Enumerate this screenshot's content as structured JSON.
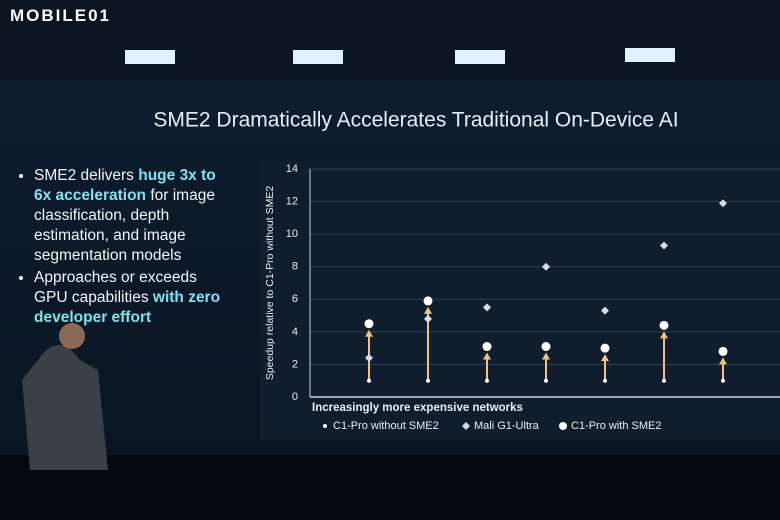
{
  "watermark": "MOBILE01",
  "bullets": [
    [
      {
        "text": "SME2 delivers ",
        "highlight": false
      },
      {
        "text": "huge 3x to 6x acceleration",
        "highlight": true
      },
      {
        "text": " for image classification, depth estimation, and image segmentation models",
        "highlight": false
      }
    ],
    [
      {
        "text": "Approaches or exceeds GPU capabilities ",
        "highlight": false
      },
      {
        "text": "with zero developer effort",
        "highlight": true
      }
    ]
  ],
  "chart_data": {
    "type": "arrow-scatter",
    "title": "SME2 Dramatically Accelerates Traditional On-Device AI",
    "y_label": "Speedup relative to C1-Pro without SME2",
    "x_label": "Increasingly more expensive networks",
    "categories": [
      null,
      null,
      null,
      null,
      null,
      null,
      null
    ],
    "series": [
      {
        "name": "C1-Pro without SME2",
        "color": "#ffffff",
        "marker": "circle-small",
        "values": [
          1,
          1,
          1,
          1,
          1,
          1,
          1
        ]
      },
      {
        "name": "Mali G1-Ultra",
        "color": "#d8dde3",
        "marker": "diamond",
        "values": [
          2.4,
          4.8,
          5.5,
          8.0,
          5.3,
          9.3,
          11.9
        ]
      },
      {
        "name": "C1-Pro with SME2",
        "color": "#ffffff",
        "marker": "circle",
        "values": [
          4.5,
          5.9,
          3.1,
          3.1,
          3.0,
          4.4,
          2.8
        ]
      }
    ],
    "arrow_color": "#f2c27e",
    "ylim": [
      0,
      14
    ],
    "yticks": [
      0,
      2,
      4,
      6,
      8,
      10,
      12,
      14
    ],
    "grid": true
  }
}
